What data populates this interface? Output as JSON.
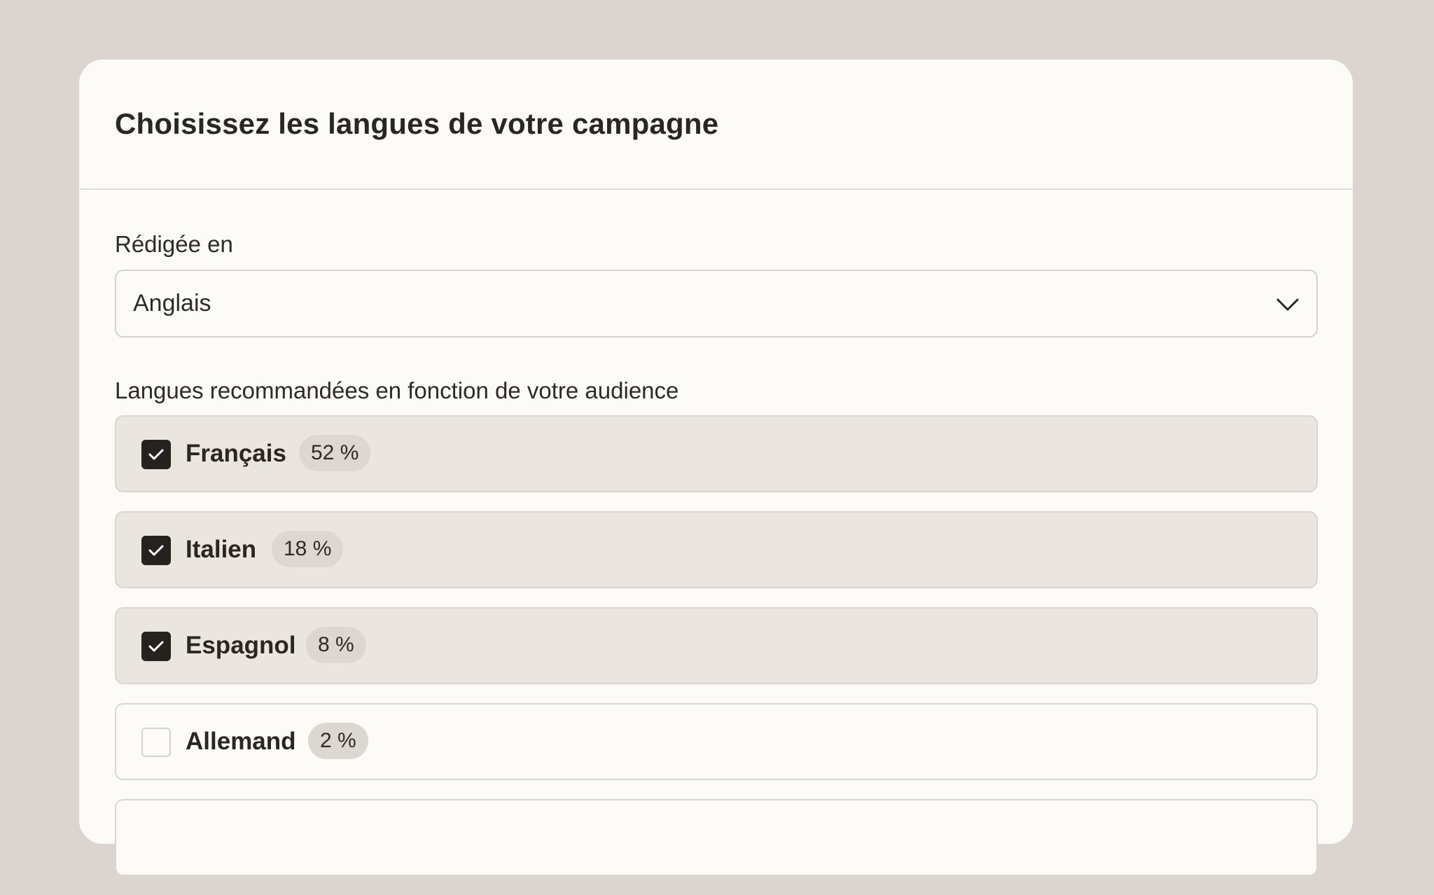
{
  "header": {
    "title": "Choisissez les langues de votre campagne"
  },
  "written_in": {
    "label": "Rédigée en",
    "selected": "Anglais",
    "icon": "chevron-down-icon"
  },
  "recommended": {
    "label": "Langues recommandées en fonction de votre audience",
    "languages": [
      {
        "name": "Français",
        "percent": "52 %",
        "checked": true
      },
      {
        "name": "Italien",
        "percent": "18 %",
        "checked": true
      },
      {
        "name": "Espagnol",
        "percent": "8 %",
        "checked": true
      },
      {
        "name": "Allemand",
        "percent": "2 %",
        "checked": false
      }
    ]
  },
  "colors": {
    "background": "#dcd5cf",
    "card": "#fdfbf8",
    "checked_row": "#ebe5e0",
    "checkbox_on": "#26221f",
    "badge": "#ddd7d1"
  }
}
